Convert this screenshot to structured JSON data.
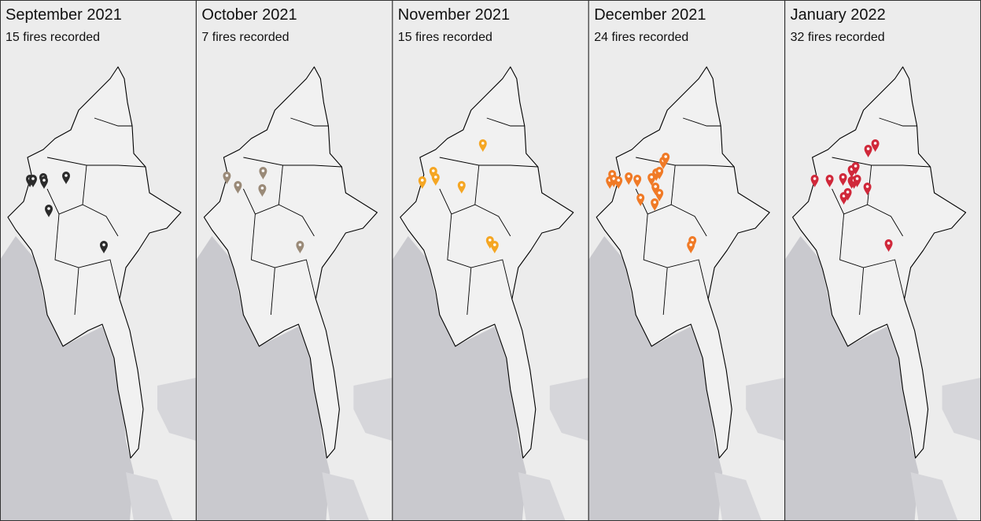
{
  "panels": [
    {
      "title": "September 2021",
      "subtitle": "15 fires recorded"
    },
    {
      "title": "October 2021",
      "subtitle": "7 fires recorded"
    },
    {
      "title": "November 2021",
      "subtitle": "15 fires recorded"
    },
    {
      "title": "December 2021",
      "subtitle": "24 fires recorded"
    },
    {
      "title": "January 2022",
      "subtitle": "32 fires recorded"
    }
  ]
}
